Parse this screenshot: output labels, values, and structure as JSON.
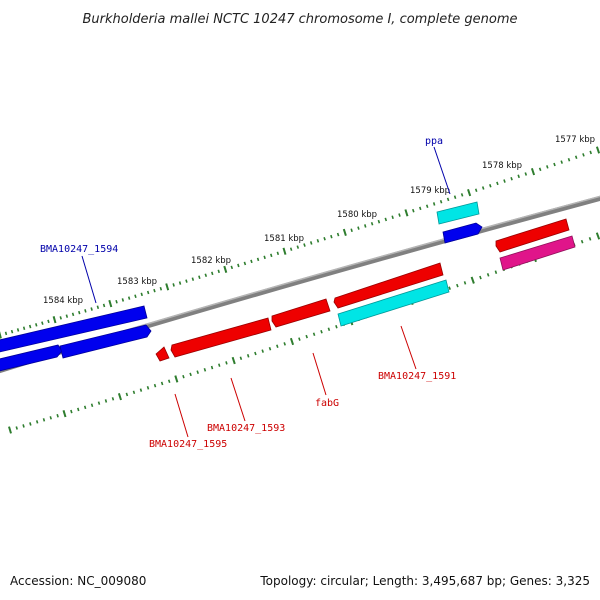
{
  "title": "Burkholderia mallei NCTC 10247 chromosome I, complete genome",
  "tick_labels": [
    "1577 kbp",
    "1578 kbp",
    "1579 kbp",
    "1580 kbp",
    "1581 kbp",
    "1582 kbp",
    "1583 kbp",
    "1584 kbp"
  ],
  "gene_labels": {
    "ppa": "ppa",
    "bma1594": "BMA10247_1594",
    "bma1591": "BMA10247_1591",
    "fabg": "fabG",
    "bma1593": "BMA10247_1593",
    "bma1595": "BMA10247_1595"
  },
  "footer": {
    "accession": "Accession: NC_009080",
    "summary": "Topology: circular; Length: 3,495,687 bp; Genes: 3,325"
  },
  "colors": {
    "forward_cds": "#0000ee",
    "reverse_cds": "#ee0000",
    "rrna_like": "#00e5e5",
    "magenta_feature": "#e0158a",
    "backbone": "#808080",
    "tick": "#2e7d2e",
    "label_blue": "#0000aa",
    "label_red": "#cc0000"
  }
}
